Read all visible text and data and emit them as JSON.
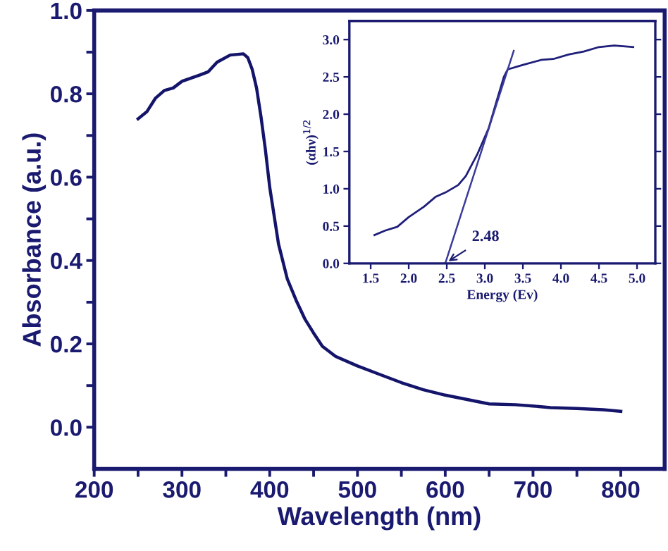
{
  "chart_data": [
    {
      "type": "line",
      "xlabel": "Wavelength (nm)",
      "ylabel": "Absorbance (a.u.)",
      "xlim": [
        200,
        850
      ],
      "ylim": [
        -0.1,
        1.0
      ],
      "xticks": [
        200,
        {
          "value": 250,
          "label": null
        },
        300,
        {
          "value": 350,
          "label": null
        },
        400,
        {
          "value": 450,
          "label": null
        },
        500,
        {
          "value": 550,
          "label": null
        },
        600,
        {
          "value": 650,
          "label": null
        },
        700,
        {
          "value": 750,
          "label": null
        },
        800
      ],
      "yticks": [
        {
          "value": 0,
          "label": "0.0"
        },
        {
          "value": 0.1,
          "label": null
        },
        0.2,
        {
          "value": 0.3,
          "label": null
        },
        0.4,
        {
          "value": 0.5,
          "label": null
        },
        0.6,
        {
          "value": 0.7,
          "label": null
        },
        0.8,
        {
          "value": 0.9,
          "label": null
        },
        {
          "value": 1,
          "label": "1.0"
        }
      ],
      "series": [
        {
          "color": "#14146b",
          "x": [
            250,
            260,
            270,
            280,
            290,
            300,
            320,
            330,
            340,
            355,
            370,
            375,
            380,
            385,
            390,
            395,
            400,
            410,
            420,
            430,
            440,
            450,
            460,
            475,
            500,
            525,
            550,
            575,
            600,
            650,
            680,
            700,
            720,
            750,
            780,
            800
          ],
          "values": [
            0.74,
            0.757,
            0.79,
            0.808,
            0.814,
            0.83,
            0.845,
            0.853,
            0.876,
            0.893,
            0.896,
            0.887,
            0.859,
            0.814,
            0.746,
            0.667,
            0.576,
            0.44,
            0.356,
            0.305,
            0.26,
            0.226,
            0.194,
            0.17,
            0.147,
            0.127,
            0.107,
            0.09,
            0.077,
            0.056,
            0.054,
            0.051,
            0.047,
            0.045,
            0.042,
            0.038
          ]
        }
      ]
    },
    {
      "type": "line",
      "xlabel": "Energy (Ev)",
      "ylabel": "(αhν)$^{1/2}$",
      "xlim": [
        1.22,
        5.24
      ],
      "ylim": [
        0,
        3.25
      ],
      "xticks": [
        1.5,
        {
          "value": 2,
          "label": "2.0"
        },
        2.5,
        {
          "value": 3,
          "label": "3.0"
        },
        3.5,
        {
          "value": 4,
          "label": "4.0"
        },
        4.5,
        {
          "value": 5,
          "label": "5.0"
        }
      ],
      "yticks": [
        {
          "value": 0,
          "label": "0.0"
        },
        0.5,
        {
          "value": 1,
          "label": "1.0"
        },
        1.5,
        {
          "value": 2,
          "label": "2.0"
        },
        2.5,
        {
          "value": 3,
          "label": "3.0"
        }
      ],
      "annotations": [
        {
          "text": "2.48",
          "x": 2.48,
          "y": 0
        }
      ],
      "series": [
        {
          "color": "#1f1f7a",
          "x": [
            1.55,
            1.69,
            1.85,
            2.0,
            2.2,
            2.35,
            2.5,
            2.65,
            2.75,
            2.9,
            3.05,
            3.15,
            3.25,
            3.3,
            3.5,
            3.75,
            3.9,
            4.1,
            4.3,
            4.5,
            4.7,
            4.95
          ],
          "values": [
            0.38,
            0.44,
            0.49,
            0.62,
            0.76,
            0.89,
            0.96,
            1.05,
            1.17,
            1.46,
            1.81,
            2.16,
            2.5,
            2.6,
            2.66,
            2.73,
            2.74,
            2.8,
            2.84,
            2.9,
            2.92,
            2.9
          ]
        },
        {
          "color": "#3a3a9a",
          "x": [
            2.48,
            3.38
          ],
          "values": [
            0,
            2.85
          ]
        }
      ]
    }
  ]
}
